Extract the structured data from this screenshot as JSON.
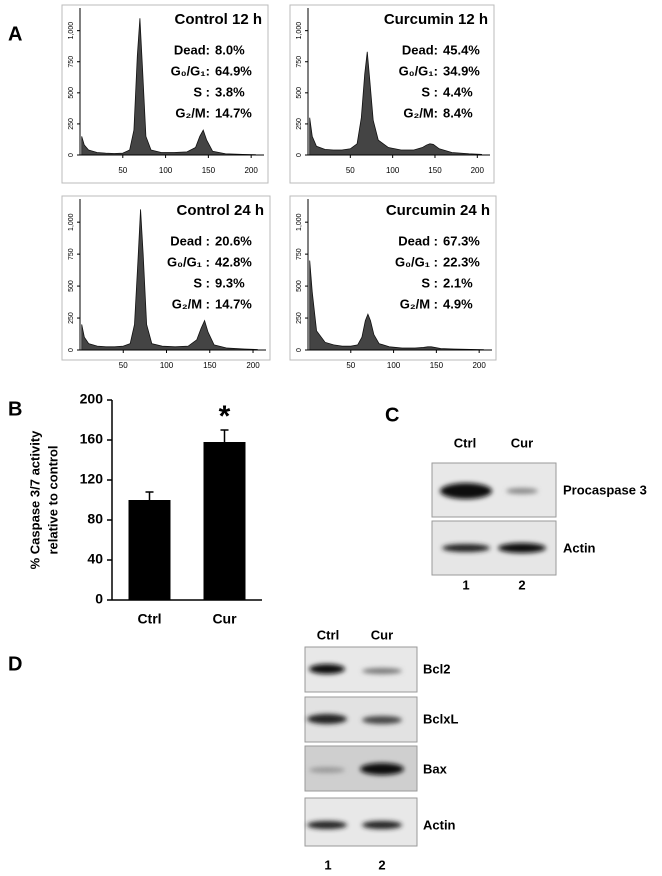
{
  "panel_labels": [
    "A",
    "B",
    "C",
    "D"
  ],
  "chart_data": [
    {
      "type": "area",
      "title": "Control 12 h",
      "x": [
        2,
        5,
        10,
        20,
        30,
        40,
        50,
        58,
        63,
        67,
        70,
        73,
        77,
        83,
        95,
        110,
        125,
        135,
        140,
        144,
        148,
        155,
        170,
        190,
        205
      ],
      "values": [
        150,
        80,
        40,
        20,
        15,
        12,
        15,
        40,
        200,
        800,
        1100,
        700,
        150,
        40,
        20,
        20,
        25,
        60,
        150,
        200,
        120,
        30,
        10,
        5,
        3
      ],
      "color": "#444444",
      "xlim": [
        0,
        215
      ],
      "ylim": [
        0,
        1150
      ],
      "xticks": [
        50,
        100,
        150,
        200
      ],
      "yticks": [
        0,
        250,
        500,
        750,
        {
          "value": 1000,
          "label": "1,000"
        }
      ],
      "stats": [
        {
          "label": "Dead:",
          "value": "8.0%"
        },
        {
          "label": "G₀/G₁:",
          "value": "64.9%"
        },
        {
          "label": "S  :",
          "value": "3.8%"
        },
        {
          "label": "G₂/M:",
          "value": "14.7%"
        }
      ]
    },
    {
      "type": "area",
      "title": "Curcumin 12 h",
      "x": [
        2,
        5,
        10,
        20,
        30,
        40,
        50,
        58,
        63,
        67,
        70,
        73,
        77,
        83,
        95,
        110,
        125,
        135,
        140,
        144,
        148,
        155,
        170,
        190,
        205
      ],
      "values": [
        300,
        150,
        70,
        45,
        40,
        40,
        50,
        90,
        300,
        650,
        830,
        600,
        280,
        120,
        60,
        40,
        40,
        60,
        80,
        90,
        85,
        50,
        20,
        10,
        5
      ],
      "color": "#444444",
      "xlim": [
        0,
        215
      ],
      "ylim": [
        0,
        1150
      ],
      "xticks": [
        50,
        100,
        150,
        200
      ],
      "yticks": [
        0,
        250,
        500,
        750,
        {
          "value": 1000,
          "label": "1,000"
        }
      ],
      "stats": [
        {
          "label": "Dead:",
          "value": "45.4%"
        },
        {
          "label": "G₀/G₁:",
          "value": "34.9%"
        },
        {
          "label": "S  :",
          "value": "4.4%"
        },
        {
          "label": "G₂/M:",
          "value": "8.4%"
        }
      ]
    },
    {
      "type": "area",
      "title": "Control 24 h",
      "x": [
        2,
        5,
        10,
        20,
        30,
        40,
        50,
        58,
        63,
        67,
        70,
        73,
        77,
        83,
        95,
        110,
        125,
        135,
        140,
        144,
        148,
        155,
        170,
        190,
        205
      ],
      "values": [
        200,
        100,
        50,
        30,
        25,
        25,
        30,
        50,
        200,
        700,
        1100,
        750,
        200,
        50,
        30,
        25,
        30,
        80,
        170,
        230,
        140,
        40,
        15,
        8,
        4
      ],
      "color": "#444444",
      "xlim": [
        0,
        215
      ],
      "ylim": [
        0,
        1150
      ],
      "xticks": [
        50,
        100,
        150,
        200
      ],
      "yticks": [
        0,
        250,
        500,
        750,
        {
          "value": 1000,
          "label": "1,000"
        }
      ],
      "stats": [
        {
          "label": "Dead :",
          "value": "20.6%"
        },
        {
          "label": "G₀/G₁ :",
          "value": "42.8%"
        },
        {
          "label": "S  :",
          "value": "9.3%"
        },
        {
          "label": "G₂/M :",
          "value": "14.7%"
        }
      ]
    },
    {
      "type": "area",
      "title": "Curcumin 24 h",
      "x": [
        2,
        5,
        10,
        20,
        30,
        40,
        50,
        58,
        63,
        67,
        70,
        73,
        77,
        83,
        95,
        110,
        125,
        135,
        140,
        144,
        148,
        155,
        170,
        190,
        205
      ],
      "values": [
        700,
        450,
        150,
        60,
        40,
        30,
        30,
        40,
        100,
        230,
        280,
        230,
        120,
        50,
        25,
        15,
        15,
        20,
        25,
        25,
        20,
        12,
        8,
        5,
        3
      ],
      "color": "#444444",
      "xlim": [
        0,
        215
      ],
      "ylim": [
        0,
        1150
      ],
      "xticks": [
        50,
        100,
        150,
        200
      ],
      "yticks": [
        0,
        250,
        500,
        750,
        {
          "value": 1000,
          "label": "1,000"
        }
      ],
      "stats": [
        {
          "label": "Dead :",
          "value": "67.3%"
        },
        {
          "label": "G₀/G₁ :",
          "value": "22.3%"
        },
        {
          "label": "S  :",
          "value": "2.1%"
        },
        {
          "label": "G₂/M :",
          "value": "4.9%"
        }
      ]
    },
    {
      "type": "bar",
      "y_label": [
        "% Caspase 3/7 activity",
        "relative to control"
      ],
      "categories": [
        "Ctrl",
        "Cur"
      ],
      "values": [
        100,
        158
      ],
      "errors": [
        8,
        12
      ],
      "color": "#000000",
      "ylim": [
        0,
        200
      ],
      "yticks": [
        0,
        40,
        80,
        120,
        160,
        200
      ],
      "annotation": "*"
    }
  ],
  "blot_c": {
    "lanes": [
      "Ctrl",
      "Cur"
    ],
    "rows": [
      "Procaspase 3",
      "Actin"
    ],
    "lane_numbers": [
      "1",
      "2"
    ]
  },
  "blot_d": {
    "lanes": [
      "Ctrl",
      "Cur"
    ],
    "rows": [
      "Bcl2",
      "BclxL",
      "Bax",
      "Actin"
    ],
    "lane_numbers": [
      "1",
      "2"
    ]
  }
}
